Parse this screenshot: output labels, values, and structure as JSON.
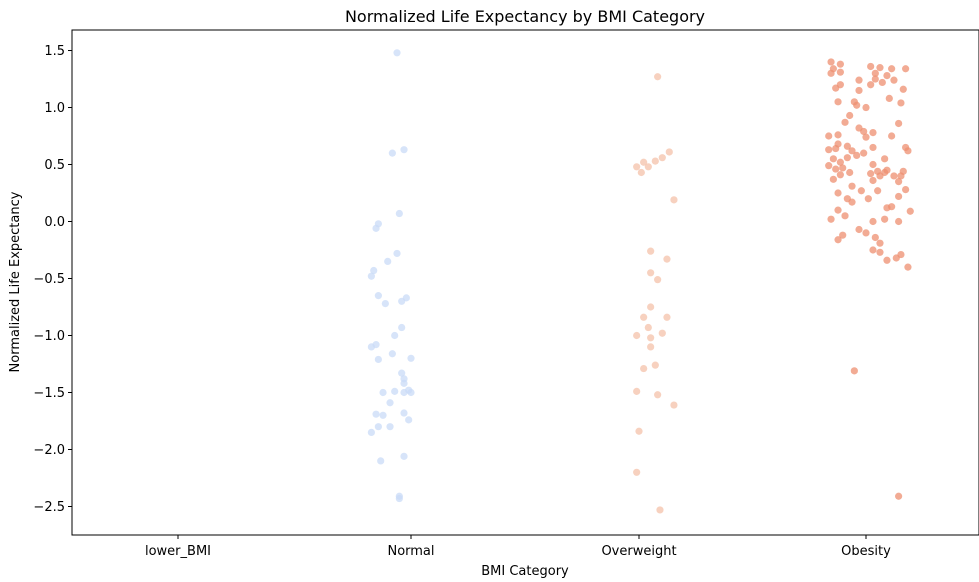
{
  "chart_data": {
    "type": "scatter",
    "title": "Normalized Life Expectancy by BMI Category",
    "xlabel": "BMI Category",
    "ylabel": "Normalized Life Expectancy",
    "categories": [
      "lower_BMI",
      "Normal",
      "Overweight",
      "Obesity"
    ],
    "ylim": [
      -2.75,
      1.68
    ],
    "yticks": [
      1.5,
      1.0,
      0.5,
      0.0,
      -0.5,
      -1.0,
      -1.5,
      -2.0,
      -2.5
    ],
    "ytick_labels": [
      "1.5",
      "1.0",
      "0.5",
      "0.0",
      "−0.5",
      "−1.0",
      "−1.5",
      "−2.0",
      "−2.5"
    ],
    "grid": false,
    "legend": "none",
    "colors": {
      "lower_BMI": "#b5cdf2",
      "Normal": "#c9dbf7",
      "Overweight": "#f4c2aa",
      "Obesity": "#ee8f70"
    },
    "series": [
      {
        "category": "lower_BMI",
        "points": []
      },
      {
        "category": "Normal",
        "points": [
          [
            -0.06,
            1.48
          ],
          [
            -0.08,
            0.6
          ],
          [
            -0.03,
            0.63
          ],
          [
            -0.05,
            0.07
          ],
          [
            -0.14,
            -0.02
          ],
          [
            -0.15,
            -0.06
          ],
          [
            -0.06,
            -0.28
          ],
          [
            -0.1,
            -0.35
          ],
          [
            -0.16,
            -0.43
          ],
          [
            -0.17,
            -0.48
          ],
          [
            -0.14,
            -0.65
          ],
          [
            -0.02,
            -0.67
          ],
          [
            -0.11,
            -0.72
          ],
          [
            -0.04,
            -0.7
          ],
          [
            -0.07,
            -1.0
          ],
          [
            -0.04,
            -0.93
          ],
          [
            -0.15,
            -1.08
          ],
          [
            -0.17,
            -1.1
          ],
          [
            -0.08,
            -1.16
          ],
          [
            -0.14,
            -1.21
          ],
          [
            0.0,
            -1.2
          ],
          [
            -0.04,
            -1.33
          ],
          [
            -0.03,
            -1.38
          ],
          [
            -0.03,
            -1.42
          ],
          [
            -0.12,
            -1.5
          ],
          [
            -0.07,
            -1.49
          ],
          [
            -0.01,
            -1.48
          ],
          [
            0.0,
            -1.5
          ],
          [
            -0.03,
            -1.5
          ],
          [
            -0.09,
            -1.59
          ],
          [
            -0.15,
            -1.69
          ],
          [
            -0.12,
            -1.7
          ],
          [
            -0.03,
            -1.68
          ],
          [
            -0.01,
            -1.74
          ],
          [
            -0.14,
            -1.8
          ],
          [
            -0.09,
            -1.8
          ],
          [
            -0.17,
            -1.85
          ],
          [
            -0.03,
            -2.06
          ],
          [
            -0.13,
            -2.1
          ],
          [
            -0.05,
            -2.41
          ],
          [
            -0.05,
            -2.43
          ]
        ]
      },
      {
        "category": "Overweight",
        "points": [
          [
            0.08,
            1.27
          ],
          [
            -0.01,
            0.48
          ],
          [
            0.04,
            0.48
          ],
          [
            0.01,
            0.43
          ],
          [
            0.02,
            0.52
          ],
          [
            0.07,
            0.53
          ],
          [
            0.1,
            0.56
          ],
          [
            0.13,
            0.61
          ],
          [
            0.15,
            0.19
          ],
          [
            0.05,
            -0.26
          ],
          [
            0.12,
            -0.33
          ],
          [
            0.05,
            -0.45
          ],
          [
            0.08,
            -0.51
          ],
          [
            0.05,
            -0.75
          ],
          [
            0.02,
            -0.84
          ],
          [
            0.12,
            -0.84
          ],
          [
            0.04,
            -0.93
          ],
          [
            0.1,
            -0.98
          ],
          [
            -0.01,
            -1.0
          ],
          [
            0.05,
            -1.02
          ],
          [
            0.05,
            -1.1
          ],
          [
            0.07,
            -1.26
          ],
          [
            0.02,
            -1.29
          ],
          [
            -0.01,
            -1.49
          ],
          [
            0.08,
            -1.52
          ],
          [
            0.15,
            -1.61
          ],
          [
            0.0,
            -1.84
          ],
          [
            -0.01,
            -2.2
          ],
          [
            0.09,
            -2.53
          ]
        ]
      },
      {
        "category": "Obesity",
        "points": [
          [
            -0.15,
            1.4
          ],
          [
            -0.11,
            1.38
          ],
          [
            -0.14,
            1.34
          ],
          [
            -0.11,
            1.31
          ],
          [
            0.02,
            1.36
          ],
          [
            0.06,
            1.35
          ],
          [
            0.11,
            1.34
          ],
          [
            0.17,
            1.34
          ],
          [
            0.04,
            1.3
          ],
          [
            -0.15,
            1.3
          ],
          [
            0.09,
            1.28
          ],
          [
            0.04,
            1.25
          ],
          [
            0.12,
            1.24
          ],
          [
            0.07,
            1.22
          ],
          [
            -0.03,
            1.24
          ],
          [
            0.02,
            1.2
          ],
          [
            -0.11,
            1.2
          ],
          [
            -0.13,
            1.17
          ],
          [
            0.16,
            1.16
          ],
          [
            -0.03,
            1.15
          ],
          [
            0.1,
            1.08
          ],
          [
            0.15,
            1.04
          ],
          [
            -0.12,
            1.05
          ],
          [
            -0.05,
            1.05
          ],
          [
            -0.04,
            1.02
          ],
          [
            0.0,
            1.0
          ],
          [
            -0.07,
            0.93
          ],
          [
            -0.09,
            0.87
          ],
          [
            0.14,
            0.86
          ],
          [
            -0.03,
            0.82
          ],
          [
            -0.01,
            0.79
          ],
          [
            0.03,
            0.78
          ],
          [
            -0.16,
            0.75
          ],
          [
            -0.12,
            0.76
          ],
          [
            0.11,
            0.75
          ],
          [
            0.0,
            0.74
          ],
          [
            -0.12,
            0.68
          ],
          [
            -0.08,
            0.66
          ],
          [
            0.03,
            0.65
          ],
          [
            0.17,
            0.65
          ],
          [
            -0.16,
            0.63
          ],
          [
            -0.13,
            0.64
          ],
          [
            0.18,
            0.62
          ],
          [
            -0.06,
            0.62
          ],
          [
            -0.01,
            0.6
          ],
          [
            -0.04,
            0.58
          ],
          [
            -0.08,
            0.56
          ],
          [
            -0.14,
            0.55
          ],
          [
            0.08,
            0.55
          ],
          [
            -0.11,
            0.52
          ],
          [
            -0.16,
            0.49
          ],
          [
            0.03,
            0.5
          ],
          [
            -0.1,
            0.47
          ],
          [
            -0.13,
            0.46
          ],
          [
            0.05,
            0.44
          ],
          [
            0.16,
            0.44
          ],
          [
            -0.07,
            0.43
          ],
          [
            0.08,
            0.43
          ],
          [
            0.02,
            0.42
          ],
          [
            0.09,
            0.45
          ],
          [
            -0.11,
            0.41
          ],
          [
            0.15,
            0.4
          ],
          [
            0.12,
            0.4
          ],
          [
            0.06,
            0.4
          ],
          [
            -0.14,
            0.37
          ],
          [
            0.03,
            0.36
          ],
          [
            0.14,
            0.35
          ],
          [
            -0.06,
            0.31
          ],
          [
            0.17,
            0.28
          ],
          [
            -0.02,
            0.27
          ],
          [
            0.05,
            0.27
          ],
          [
            -0.12,
            0.25
          ],
          [
            0.14,
            0.22
          ],
          [
            -0.08,
            0.2
          ],
          [
            0.01,
            0.2
          ],
          [
            -0.06,
            0.17
          ],
          [
            0.11,
            0.13
          ],
          [
            0.09,
            0.12
          ],
          [
            -0.12,
            0.1
          ],
          [
            0.19,
            0.09
          ],
          [
            -0.09,
            0.05
          ],
          [
            -0.15,
            0.02
          ],
          [
            0.03,
            0.0
          ],
          [
            0.08,
            0.02
          ],
          [
            0.14,
            0.0
          ],
          [
            -0.03,
            -0.07
          ],
          [
            0.0,
            -0.1
          ],
          [
            -0.1,
            -0.12
          ],
          [
            0.04,
            -0.14
          ],
          [
            -0.12,
            -0.16
          ],
          [
            0.06,
            -0.19
          ],
          [
            0.03,
            -0.25
          ],
          [
            0.06,
            -0.27
          ],
          [
            0.15,
            -0.29
          ],
          [
            0.13,
            -0.32
          ],
          [
            0.09,
            -0.34
          ],
          [
            0.18,
            -0.4
          ],
          [
            -0.05,
            -1.31
          ],
          [
            0.14,
            -2.41
          ]
        ]
      }
    ]
  }
}
